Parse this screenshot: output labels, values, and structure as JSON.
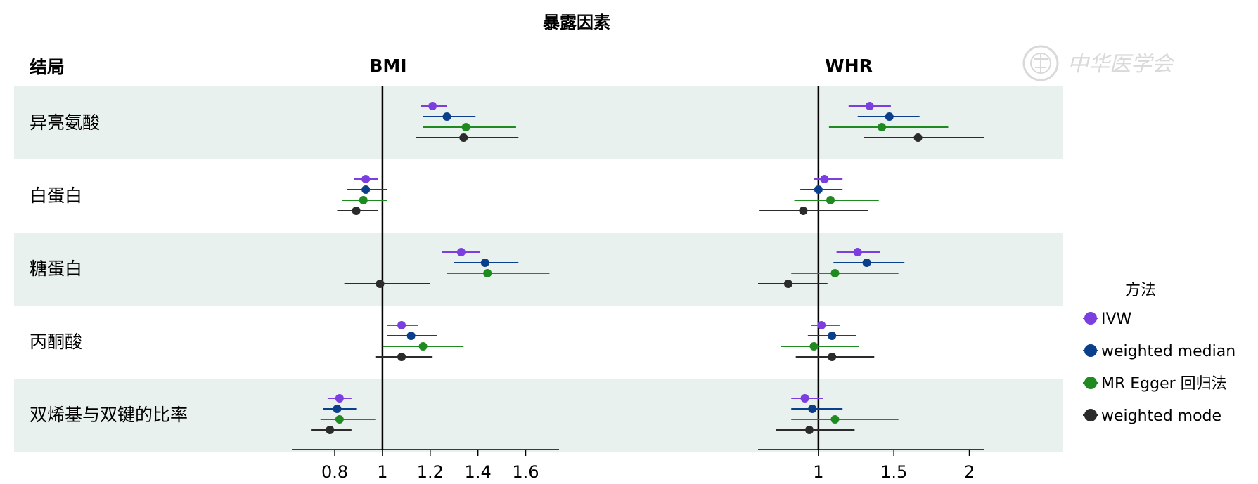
{
  "chart_data": {
    "type": "forest",
    "title": "暴露因素",
    "row_header": "结局",
    "legend_title": "方法",
    "seal_text": "中华医学会",
    "outcomes": [
      "异亮氨酸",
      "白蛋白",
      "糖蛋白",
      "丙酮酸",
      "双烯基与双键的比率"
    ],
    "methods": [
      {
        "name": "IVW",
        "color": "#7b3fe0"
      },
      {
        "name": "weighted median",
        "color": "#0b3f8c"
      },
      {
        "name": "MR Egger 回归法",
        "color": "#1f8a1f"
      },
      {
        "name": "weighted mode",
        "color": "#2b2b2b"
      }
    ],
    "panels": [
      {
        "name": "BMI",
        "xlim": [
          0.62,
          1.74
        ],
        "ticks": [
          0.8,
          1,
          1.2,
          1.4,
          1.6
        ],
        "tick_labels": [
          "0.8",
          "1",
          "1.2",
          "1.4",
          "1.6"
        ],
        "reference": 1,
        "data": [
          [
            [
              1.21,
              1.16,
              1.27
            ],
            [
              1.27,
              1.17,
              1.39
            ],
            [
              1.35,
              1.17,
              1.56
            ],
            [
              1.34,
              1.14,
              1.57
            ]
          ],
          [
            [
              0.93,
              0.88,
              0.98
            ],
            [
              0.93,
              0.85,
              1.02
            ],
            [
              0.92,
              0.83,
              1.02
            ],
            [
              0.89,
              0.81,
              0.98
            ]
          ],
          [
            [
              1.33,
              1.25,
              1.41
            ],
            [
              1.43,
              1.3,
              1.57
            ],
            [
              1.44,
              1.27,
              1.7
            ],
            [
              0.99,
              0.84,
              1.2
            ]
          ],
          [
            [
              1.08,
              1.02,
              1.15
            ],
            [
              1.12,
              1.02,
              1.23
            ],
            [
              1.17,
              1.0,
              1.34
            ],
            [
              1.08,
              0.97,
              1.21
            ]
          ],
          [
            [
              0.82,
              0.77,
              0.87
            ],
            [
              0.81,
              0.75,
              0.89
            ],
            [
              0.82,
              0.74,
              0.97
            ],
            [
              0.78,
              0.7,
              0.87
            ]
          ]
        ]
      },
      {
        "name": "WHR",
        "xlim": [
          0.6,
          2.1
        ],
        "ticks": [
          1,
          1.5,
          2
        ],
        "tick_labels": [
          "1",
          "1.5",
          "2"
        ],
        "reference": 1,
        "data": [
          [
            [
              1.34,
              1.2,
              1.48
            ],
            [
              1.47,
              1.26,
              1.67
            ],
            [
              1.42,
              1.07,
              1.86
            ],
            [
              1.66,
              1.3,
              2.1
            ]
          ],
          [
            [
              1.04,
              0.97,
              1.16
            ],
            [
              1.0,
              0.88,
              1.16
            ],
            [
              1.08,
              0.84,
              1.4
            ],
            [
              0.9,
              0.61,
              1.33
            ]
          ],
          [
            [
              1.26,
              1.12,
              1.41
            ],
            [
              1.32,
              1.1,
              1.57
            ],
            [
              1.11,
              0.82,
              1.53
            ],
            [
              0.8,
              0.6,
              1.06
            ]
          ],
          [
            [
              1.02,
              0.95,
              1.14
            ],
            [
              1.09,
              0.93,
              1.25
            ],
            [
              0.97,
              0.75,
              1.27
            ],
            [
              1.09,
              0.85,
              1.37
            ]
          ],
          [
            [
              0.91,
              0.82,
              1.03
            ],
            [
              0.96,
              0.82,
              1.16
            ],
            [
              1.11,
              0.82,
              1.53
            ],
            [
              0.94,
              0.72,
              1.24
            ]
          ]
        ]
      }
    ]
  }
}
